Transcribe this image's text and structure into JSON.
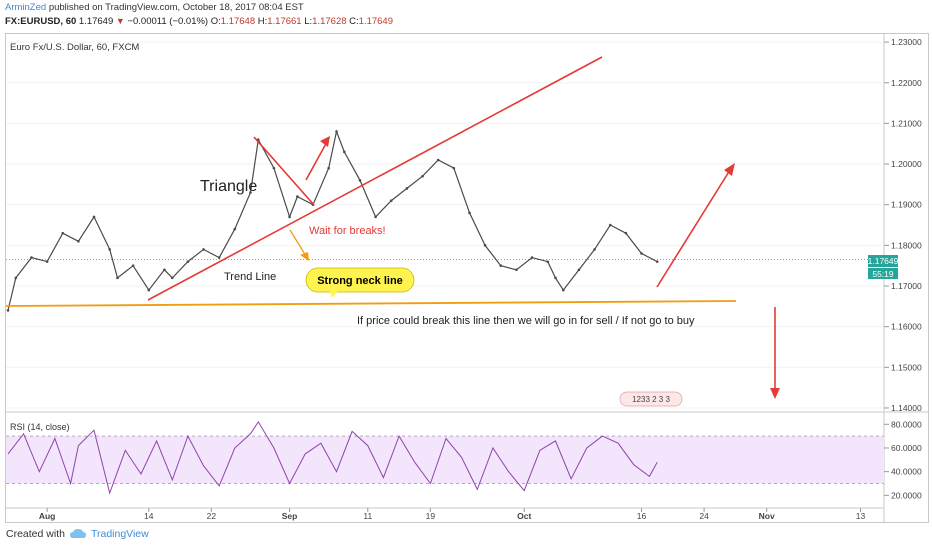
{
  "header": {
    "author": "ArminZed",
    "published": "published on TradingView.com, October 18, 2017 08:04 EST",
    "ticker_line": {
      "symbol": "FX:EURUSD, 60",
      "last": "1.17649",
      "change": "−0.00011 (−0.01%)",
      "o_label": "O:",
      "o": "1.17648",
      "h_label": "H:",
      "h": "1.17661",
      "l_label": "L:",
      "l": "1.17628",
      "c_label": "C:",
      "c": "1.17649"
    }
  },
  "footer": {
    "created_with": "Created with",
    "brand": "TradingView"
  },
  "chart_data": [
    {
      "type": "line",
      "title": "Euro Fx/U.S. Dollar, 60, FXCM",
      "y_axis": {
        "ticks": [
          1.14,
          1.15,
          1.16,
          1.17,
          1.18,
          1.19,
          1.2,
          1.21,
          1.22,
          1.23
        ],
        "ylim": [
          1.1395,
          1.2315
        ],
        "side": "right"
      },
      "x_axis": {
        "ticks": [
          "Aug",
          "14",
          "22",
          "Sep",
          "11",
          "19",
          "Oct",
          "16",
          "24",
          "Nov",
          "13"
        ]
      },
      "price_label": "1.17649",
      "countdown_label": "55:19",
      "series": [
        {
          "x": [
            "Jul 27",
            "Jul 28",
            "Jul 30",
            "Aug 1",
            "Aug 3",
            "Aug 5",
            "Aug 7",
            "Aug 9",
            "Aug 10",
            "Aug 12",
            "Aug 14",
            "Aug 16",
            "Aug 17",
            "Aug 19",
            "Aug 21",
            "Aug 23",
            "Aug 25",
            "Aug 27",
            "Aug 28",
            "Aug 30",
            "Sep 1",
            "Sep 2",
            "Sep 4",
            "Sep 6",
            "Sep 7",
            "Sep 8",
            "Sep 10",
            "Sep 12",
            "Sep 14",
            "Sep 16",
            "Sep 18",
            "Sep 20",
            "Sep 22",
            "Sep 24",
            "Sep 26",
            "Sep 28",
            "Sep 30",
            "Oct 2",
            "Oct 4",
            "Oct 5",
            "Oct 6",
            "Oct 8",
            "Oct 10",
            "Oct 12",
            "Oct 14",
            "Oct 16",
            "Oct 18"
          ],
          "values": [
            1.164,
            1.172,
            1.177,
            1.176,
            1.183,
            1.181,
            1.187,
            1.179,
            1.172,
            1.175,
            1.169,
            1.174,
            1.172,
            1.176,
            1.179,
            1.177,
            1.184,
            1.193,
            1.206,
            1.199,
            1.187,
            1.192,
            1.19,
            1.199,
            1.208,
            1.203,
            1.196,
            1.187,
            1.191,
            1.194,
            1.197,
            1.201,
            1.199,
            1.188,
            1.18,
            1.175,
            1.174,
            1.177,
            1.176,
            1.172,
            1.169,
            1.174,
            1.179,
            1.185,
            1.183,
            1.178,
            1.176
          ]
        }
      ],
      "annotations": [
        {
          "text": "Triangle",
          "color": "#222222"
        },
        {
          "text": "Trend Line",
          "color": "#222222"
        },
        {
          "text": "Wait for breaks!",
          "color": "#e53935"
        },
        {
          "text": "Strong neck line",
          "color": "#000000",
          "background": "#fff44f"
        },
        {
          "text": "If price could break this line then we will go in for sell / If not go to buy",
          "color": "#222222"
        }
      ],
      "events_badge": "1233 2  3  3",
      "colors": {
        "price": "#4a4a4a",
        "trendlines": "#e53935",
        "neckline": "#f39c12",
        "last_price": "#26a69a"
      }
    },
    {
      "type": "line",
      "title": "RSI (14, close)",
      "y_axis": {
        "ticks": [
          20,
          40,
          60,
          80
        ],
        "labels": [
          "20.0000",
          "40.0000",
          "60.0000",
          "80.0000"
        ],
        "ylim": [
          11,
          87
        ],
        "band": [
          30,
          70
        ]
      },
      "series": [
        {
          "x": [
            "Jul 27",
            "Jul 29",
            "Jul 31",
            "Aug 2",
            "Aug 4",
            "Aug 5",
            "Aug 7",
            "Aug 9",
            "Aug 11",
            "Aug 13",
            "Aug 15",
            "Aug 17",
            "Aug 19",
            "Aug 21",
            "Aug 23",
            "Aug 25",
            "Aug 27",
            "Aug 28",
            "Aug 30",
            "Sep 1",
            "Sep 3",
            "Sep 5",
            "Sep 7",
            "Sep 9",
            "Sep 11",
            "Sep 13",
            "Sep 15",
            "Sep 17",
            "Sep 19",
            "Sep 21",
            "Sep 23",
            "Sep 25",
            "Sep 27",
            "Sep 29",
            "Oct 1",
            "Oct 3",
            "Oct 5",
            "Oct 7",
            "Oct 9",
            "Oct 11",
            "Oct 13",
            "Oct 15",
            "Oct 17",
            "Oct 18"
          ],
          "values": [
            55,
            72,
            40,
            68,
            30,
            62,
            75,
            22,
            58,
            38,
            66,
            33,
            70,
            45,
            28,
            60,
            72,
            82,
            60,
            30,
            55,
            64,
            40,
            74,
            62,
            35,
            70,
            48,
            30,
            68,
            52,
            25,
            60,
            40,
            24,
            58,
            66,
            34,
            60,
            70,
            64,
            46,
            36,
            48
          ]
        }
      ],
      "color": "#8e44ad"
    }
  ]
}
